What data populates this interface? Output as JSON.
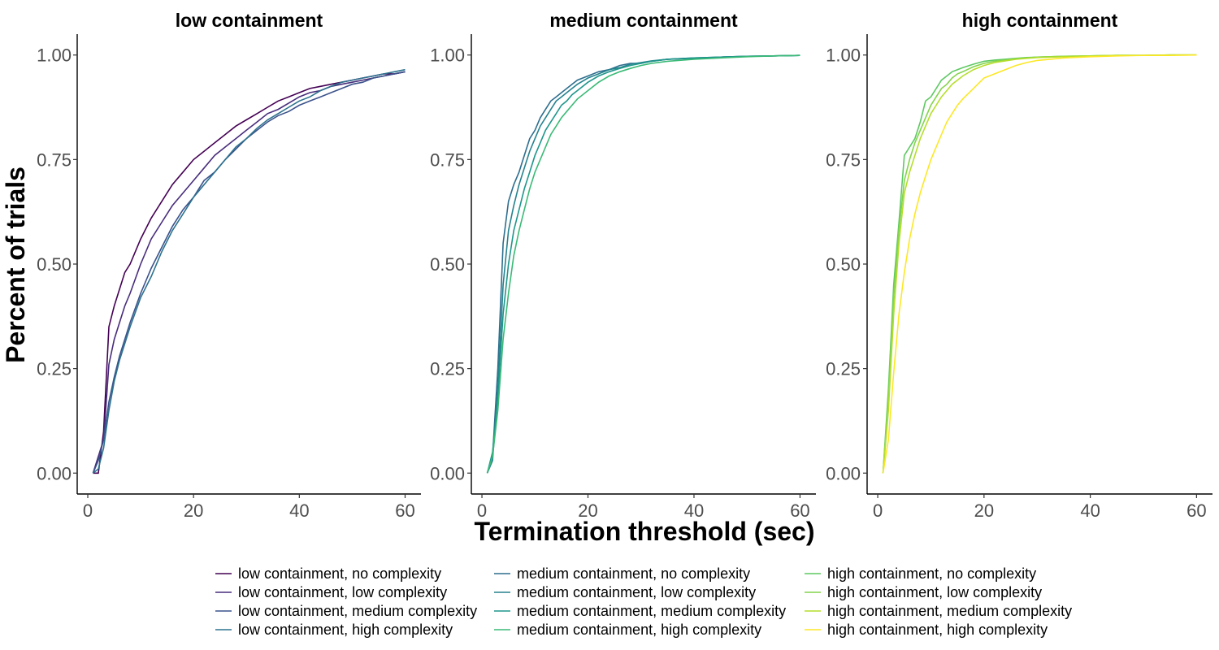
{
  "chart_data": {
    "type": "line",
    "ylabel": "Percent of trials",
    "xlabel": "Termination threshold (sec)",
    "x_ticks": [
      0,
      20,
      40,
      60
    ],
    "y_ticks": [
      0.0,
      0.25,
      0.5,
      0.75,
      1.0
    ],
    "y_tick_labels": [
      "0.00",
      "0.25",
      "0.50",
      "0.75",
      "1.00"
    ],
    "xlim": [
      -2,
      63
    ],
    "legend_position": "bottom",
    "grid": false,
    "panels": [
      {
        "title": "low containment",
        "ylim": [
          -0.05,
          1.05
        ],
        "series": [
          {
            "name": "low containment, no complexity",
            "color": "#440154",
            "x": [
              1,
              2,
              3,
              4,
              5,
              6,
              7,
              8,
              10,
              12,
              14,
              16,
              18,
              20,
              22,
              24,
              26,
              28,
              30,
              32,
              34,
              36,
              38,
              40,
              42,
              44,
              46,
              48,
              50,
              52,
              54,
              56,
              58,
              60
            ],
            "y": [
              0,
              0,
              0.1,
              0.35,
              0.4,
              0.44,
              0.48,
              0.5,
              0.56,
              0.61,
              0.65,
              0.69,
              0.72,
              0.75,
              0.77,
              0.79,
              0.81,
              0.83,
              0.845,
              0.86,
              0.875,
              0.89,
              0.9,
              0.91,
              0.92,
              0.925,
              0.93,
              0.935,
              0.94,
              0.945,
              0.95,
              0.955,
              0.955,
              0.96
            ]
          },
          {
            "name": "low containment, low complexity",
            "color": "#472d7b",
            "x": [
              1,
              2,
              3,
              4,
              5,
              6,
              7,
              8,
              10,
              12,
              14,
              16,
              18,
              20,
              22,
              24,
              26,
              28,
              30,
              32,
              34,
              36,
              38,
              40,
              42,
              44,
              46,
              48,
              50,
              52,
              54,
              56,
              58,
              60
            ],
            "y": [
              0,
              0.04,
              0.08,
              0.26,
              0.32,
              0.36,
              0.4,
              0.43,
              0.5,
              0.56,
              0.6,
              0.64,
              0.67,
              0.7,
              0.73,
              0.76,
              0.78,
              0.8,
              0.82,
              0.84,
              0.86,
              0.87,
              0.885,
              0.9,
              0.91,
              0.915,
              0.925,
              0.93,
              0.935,
              0.94,
              0.945,
              0.95,
              0.955,
              0.96
            ]
          },
          {
            "name": "low containment, medium complexity",
            "color": "#3b528b",
            "x": [
              1,
              2,
              3,
              4,
              5,
              6,
              7,
              8,
              10,
              12,
              14,
              16,
              18,
              20,
              22,
              24,
              26,
              28,
              30,
              32,
              34,
              36,
              38,
              40,
              42,
              44,
              46,
              48,
              50,
              52,
              54,
              56,
              58,
              60
            ],
            "y": [
              0,
              0.03,
              0.08,
              0.17,
              0.23,
              0.28,
              0.32,
              0.36,
              0.43,
              0.49,
              0.54,
              0.59,
              0.63,
              0.66,
              0.7,
              0.72,
              0.75,
              0.775,
              0.8,
              0.82,
              0.84,
              0.855,
              0.865,
              0.88,
              0.89,
              0.9,
              0.91,
              0.92,
              0.93,
              0.935,
              0.945,
              0.95,
              0.955,
              0.96
            ]
          },
          {
            "name": "low containment, high complexity",
            "color": "#2c728e",
            "x": [
              1,
              2,
              3,
              4,
              5,
              6,
              7,
              8,
              10,
              12,
              14,
              16,
              18,
              20,
              22,
              24,
              26,
              28,
              30,
              32,
              34,
              36,
              38,
              40,
              42,
              44,
              46,
              48,
              50,
              52,
              54,
              56,
              58,
              60
            ],
            "y": [
              0,
              0.01,
              0.06,
              0.15,
              0.22,
              0.27,
              0.31,
              0.35,
              0.42,
              0.47,
              0.53,
              0.58,
              0.62,
              0.66,
              0.69,
              0.72,
              0.75,
              0.78,
              0.8,
              0.825,
              0.845,
              0.86,
              0.875,
              0.89,
              0.9,
              0.915,
              0.925,
              0.935,
              0.94,
              0.945,
              0.95,
              0.955,
              0.96,
              0.965
            ]
          }
        ]
      },
      {
        "title": "medium containment",
        "ylim": [
          -0.05,
          1.05
        ],
        "series": [
          {
            "name": "medium containment, no complexity",
            "color": "#2e6e8e",
            "x": [
              1,
              2,
              3,
              4,
              5,
              6,
              7,
              8,
              9,
              10,
              11,
              12,
              13,
              14,
              15,
              16,
              17,
              18,
              20,
              22,
              24,
              26,
              28,
              30,
              32,
              35,
              40,
              45,
              50,
              55,
              60
            ],
            "y": [
              0,
              0.04,
              0.25,
              0.55,
              0.65,
              0.69,
              0.72,
              0.76,
              0.8,
              0.82,
              0.85,
              0.87,
              0.89,
              0.9,
              0.91,
              0.92,
              0.93,
              0.94,
              0.95,
              0.96,
              0.965,
              0.975,
              0.98,
              0.98,
              0.985,
              0.99,
              0.992,
              0.995,
              0.997,
              0.998,
              0.999
            ]
          },
          {
            "name": "medium containment, low complexity",
            "color": "#26828e",
            "x": [
              1,
              2,
              3,
              4,
              5,
              6,
              7,
              8,
              9,
              10,
              11,
              12,
              13,
              14,
              15,
              16,
              17,
              18,
              20,
              22,
              24,
              26,
              28,
              30,
              32,
              35,
              40,
              45,
              50,
              55,
              60
            ],
            "y": [
              0,
              0.03,
              0.2,
              0.45,
              0.58,
              0.64,
              0.69,
              0.73,
              0.77,
              0.8,
              0.83,
              0.85,
              0.87,
              0.89,
              0.9,
              0.91,
              0.92,
              0.93,
              0.945,
              0.955,
              0.965,
              0.97,
              0.978,
              0.982,
              0.986,
              0.99,
              0.993,
              0.995,
              0.997,
              0.998,
              0.999
            ]
          },
          {
            "name": "medium containment, medium complexity",
            "color": "#1f968b",
            "x": [
              1,
              2,
              3,
              4,
              5,
              6,
              7,
              8,
              9,
              10,
              11,
              12,
              13,
              14,
              15,
              16,
              17,
              18,
              20,
              22,
              24,
              26,
              28,
              30,
              32,
              35,
              40,
              45,
              50,
              55,
              60
            ],
            "y": [
              0,
              0.05,
              0.18,
              0.38,
              0.5,
              0.58,
              0.63,
              0.68,
              0.72,
              0.76,
              0.79,
              0.82,
              0.84,
              0.86,
              0.88,
              0.89,
              0.905,
              0.915,
              0.935,
              0.95,
              0.96,
              0.968,
              0.975,
              0.98,
              0.985,
              0.99,
              0.993,
              0.995,
              0.997,
              0.998,
              0.999
            ]
          },
          {
            "name": "medium containment, high complexity",
            "color": "#3aba76",
            "x": [
              1,
              2,
              3,
              4,
              5,
              6,
              7,
              8,
              9,
              10,
              11,
              12,
              13,
              14,
              15,
              16,
              17,
              18,
              20,
              22,
              24,
              26,
              28,
              30,
              32,
              35,
              40,
              45,
              50,
              55,
              60
            ],
            "y": [
              0,
              0.04,
              0.15,
              0.32,
              0.43,
              0.52,
              0.58,
              0.63,
              0.68,
              0.72,
              0.75,
              0.78,
              0.81,
              0.83,
              0.85,
              0.865,
              0.88,
              0.895,
              0.915,
              0.935,
              0.95,
              0.96,
              0.968,
              0.975,
              0.98,
              0.985,
              0.99,
              0.993,
              0.996,
              0.998,
              0.999
            ]
          }
        ]
      },
      {
        "title": "high containment",
        "ylim": [
          -0.05,
          1.05
        ],
        "series": [
          {
            "name": "high containment, no complexity",
            "color": "#5ec962",
            "x": [
              1,
              2,
              3,
              4,
              5,
              6,
              7,
              8,
              9,
              10,
              11,
              12,
              13,
              14,
              15,
              16,
              18,
              20,
              22,
              24,
              26,
              28,
              30,
              35,
              40,
              45,
              50,
              55,
              60
            ],
            "y": [
              0,
              0.2,
              0.45,
              0.6,
              0.76,
              0.78,
              0.8,
              0.84,
              0.89,
              0.9,
              0.92,
              0.94,
              0.95,
              0.96,
              0.965,
              0.97,
              0.978,
              0.985,
              0.988,
              0.99,
              0.992,
              0.994,
              0.995,
              0.997,
              0.998,
              0.999,
              0.999,
              1.0,
              1.0
            ]
          },
          {
            "name": "high containment, low complexity",
            "color": "#84d44b",
            "x": [
              1,
              2,
              3,
              4,
              5,
              6,
              7,
              8,
              9,
              10,
              11,
              12,
              13,
              14,
              15,
              16,
              18,
              20,
              22,
              24,
              26,
              28,
              30,
              35,
              40,
              45,
              50,
              55,
              60
            ],
            "y": [
              0,
              0.18,
              0.42,
              0.58,
              0.7,
              0.75,
              0.79,
              0.82,
              0.85,
              0.88,
              0.9,
              0.92,
              0.93,
              0.945,
              0.955,
              0.96,
              0.972,
              0.98,
              0.985,
              0.988,
              0.991,
              0.993,
              0.995,
              0.997,
              0.998,
              0.999,
              0.999,
              1.0,
              1.0
            ]
          },
          {
            "name": "high containment, medium complexity",
            "color": "#b5de2b",
            "x": [
              1,
              2,
              3,
              4,
              5,
              6,
              7,
              8,
              9,
              10,
              11,
              12,
              13,
              14,
              15,
              16,
              18,
              20,
              22,
              24,
              26,
              28,
              30,
              35,
              40,
              45,
              50,
              55,
              60
            ],
            "y": [
              0,
              0.15,
              0.38,
              0.55,
              0.67,
              0.72,
              0.76,
              0.8,
              0.83,
              0.86,
              0.88,
              0.9,
              0.915,
              0.93,
              0.94,
              0.95,
              0.965,
              0.975,
              0.982,
              0.986,
              0.99,
              0.992,
              0.994,
              0.996,
              0.998,
              0.999,
              0.999,
              1.0,
              1.0
            ]
          },
          {
            "name": "high containment, high complexity",
            "color": "#fde725",
            "x": [
              1,
              2,
              3,
              4,
              5,
              6,
              7,
              8,
              9,
              10,
              11,
              12,
              13,
              14,
              15,
              16,
              18,
              20,
              22,
              24,
              26,
              28,
              30,
              35,
              40,
              45,
              50,
              55,
              60
            ],
            "y": [
              0,
              0.08,
              0.24,
              0.38,
              0.48,
              0.56,
              0.62,
              0.67,
              0.71,
              0.75,
              0.78,
              0.81,
              0.84,
              0.86,
              0.88,
              0.895,
              0.92,
              0.945,
              0.955,
              0.965,
              0.975,
              0.982,
              0.987,
              0.993,
              0.996,
              0.998,
              0.999,
              0.999,
              1.0
            ]
          }
        ]
      }
    ]
  }
}
